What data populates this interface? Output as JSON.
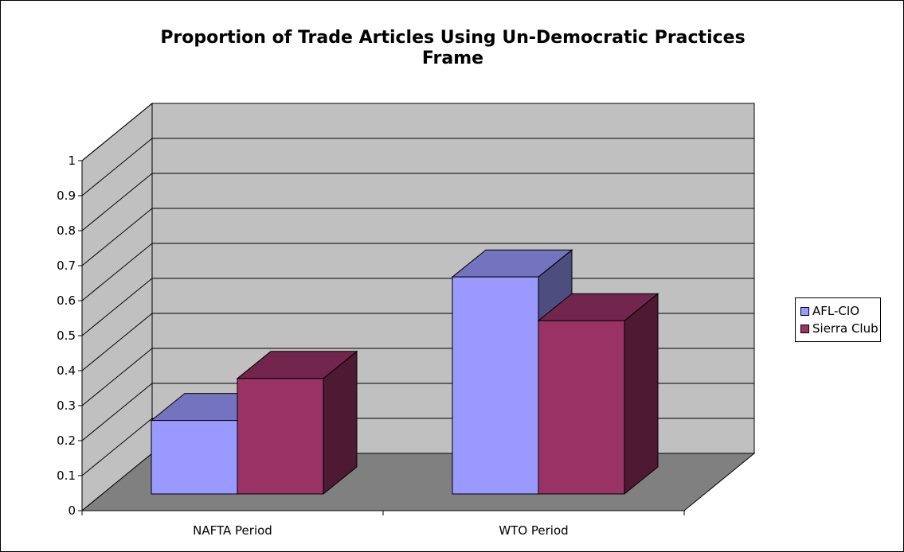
{
  "chart_data": {
    "type": "bar",
    "title_lines": [
      "Proportion of Trade Articles Using Un-Democratic Practices",
      "Frame"
    ],
    "categories": [
      "NAFTA Period",
      "WTO Period"
    ],
    "series": [
      {
        "name": "AFL-CIO",
        "values": [
          0.21,
          0.62
        ],
        "color": "#9999ff",
        "top_color": "#7373bf",
        "side_color": "#4d4d80"
      },
      {
        "name": "Sierra Club",
        "values": [
          0.33,
          0.495
        ],
        "color": "#993366",
        "top_color": "#73264d",
        "side_color": "#4d1933"
      }
    ],
    "ylim": [
      0,
      1
    ],
    "yticks": [
      "0",
      "0.1",
      "0.2",
      "0.3",
      "0.4",
      "0.5",
      "0.6",
      "0.7",
      "0.8",
      "0.9",
      "1"
    ],
    "grid": true,
    "legend_position": "right",
    "wall_color": "#c0c0c0",
    "floor_color": "#808080",
    "three_d": true
  }
}
